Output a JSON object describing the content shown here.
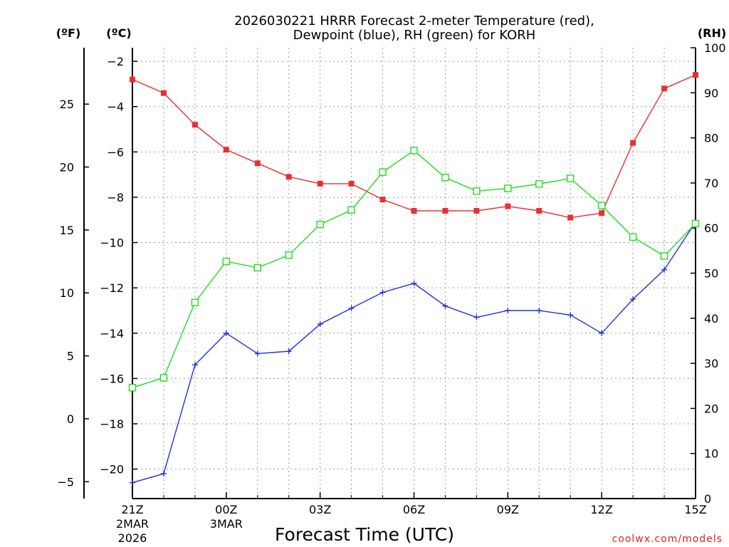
{
  "chart_data": {
    "type": "line",
    "title": "2026030221 HRRR Forecast 2-meter Temperature (red),",
    "subtitle": "Dewpoint (blue), RH (green) for KORH",
    "xlabel": "Forecast Time (UTC)",
    "credit": "coolwx.com/models",
    "units": {
      "fahrenheit": "(ºF)",
      "celsius": "(ºC)",
      "rh": "(RH)"
    },
    "x_hours": [
      0,
      1,
      2,
      3,
      4,
      5,
      6,
      7,
      8,
      9,
      10,
      11,
      12,
      13,
      14,
      15,
      16,
      17,
      18
    ],
    "xlim": [
      0,
      18
    ],
    "x_ticks": [
      {
        "hour": 0,
        "label": "21Z",
        "date": "2MAR",
        "year": "2026"
      },
      {
        "hour": 3,
        "label": "00Z",
        "date": "3MAR",
        "year": ""
      },
      {
        "hour": 6,
        "label": "03Z",
        "date": "",
        "year": ""
      },
      {
        "hour": 9,
        "label": "06Z",
        "date": "",
        "year": ""
      },
      {
        "hour": 12,
        "label": "09Z",
        "date": "",
        "year": ""
      },
      {
        "hour": 15,
        "label": "12Z",
        "date": "",
        "year": ""
      },
      {
        "hour": 18,
        "label": "15Z",
        "date": "",
        "year": ""
      }
    ],
    "celsius_axis": {
      "ylim": [
        -21.3,
        -1.4
      ],
      "ticks": [
        -2,
        -4,
        -6,
        -8,
        -10,
        -12,
        -14,
        -16,
        -18,
        -20
      ]
    },
    "fahrenheit_axis": {
      "ylim": [
        -6.34,
        29.48
      ],
      "ticks": [
        25,
        20,
        15,
        10,
        5,
        0,
        -5
      ]
    },
    "rh_axis": {
      "ylim": [
        0,
        100
      ],
      "ticks": [
        100,
        90,
        80,
        70,
        60,
        50,
        40,
        30,
        20,
        10,
        0
      ]
    },
    "series": [
      {
        "name": "2-meter Temperature",
        "axis": "celsius",
        "color": "#e83030",
        "marker": "filled-square",
        "values": [
          -2.8,
          -3.4,
          -4.8,
          -5.9,
          -6.5,
          -7.1,
          -7.4,
          -7.4,
          -8.1,
          -8.6,
          -8.6,
          -8.6,
          -8.4,
          -8.6,
          -8.9,
          -8.7,
          -5.6,
          -3.2,
          -2.6
        ]
      },
      {
        "name": "Dewpoint",
        "axis": "celsius",
        "color": "#2030e0",
        "marker": "plus",
        "values": [
          -20.6,
          -20.2,
          -15.4,
          -14.0,
          -14.9,
          -14.8,
          -13.6,
          -12.9,
          -12.2,
          -11.8,
          -12.8,
          -13.3,
          -13.0,
          -13.0,
          -13.2,
          -14.0,
          -12.5,
          -11.2,
          -9.1
        ]
      },
      {
        "name": "RH",
        "axis": "rh",
        "color": "#20dd20",
        "marker": "open-square",
        "values": [
          24.6,
          26.8,
          43.5,
          52.6,
          51.2,
          54.0,
          60.8,
          64.0,
          72.4,
          77.2,
          71.2,
          68.2,
          68.8,
          69.8,
          71.0,
          65.0,
          58.0,
          53.8,
          61.0
        ]
      }
    ]
  }
}
